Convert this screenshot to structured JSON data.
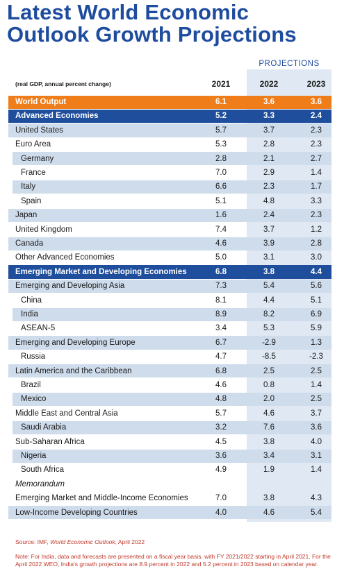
{
  "title": "Latest World Economic Outlook Growth Projections",
  "projections_label": "PROJECTIONS",
  "table": {
    "header": [
      "(real GDP, annual percent change)",
      "2021",
      "2022",
      "2023"
    ],
    "rows": [
      [
        "World Output",
        "6.1",
        "3.6",
        "3.6"
      ],
      [
        "Advanced Economies",
        "5.2",
        "3.3",
        "2.4"
      ],
      [
        "United States",
        "5.7",
        "3.7",
        "2.3"
      ],
      [
        "Euro Area",
        "5.3",
        "2.8",
        "2.3"
      ],
      [
        "Germany",
        "2.8",
        "2.1",
        "2.7"
      ],
      [
        "France",
        "7.0",
        "2.9",
        "1.4"
      ],
      [
        "Italy",
        "6.6",
        "2.3",
        "1.7"
      ],
      [
        "Spain",
        "5.1",
        "4.8",
        "3.3"
      ],
      [
        "Japan",
        "1.6",
        "2.4",
        "2.3"
      ],
      [
        "United Kingdom",
        "7.4",
        "3.7",
        "1.2"
      ],
      [
        "Canada",
        "4.6",
        "3.9",
        "2.8"
      ],
      [
        "Other Advanced Economies",
        "5.0",
        "3.1",
        "3.0"
      ],
      [
        "Emerging Market and Developing Economies",
        "6.8",
        "3.8",
        "4.4"
      ],
      [
        "Emerging and Developing Asia",
        "7.3",
        "5.4",
        "5.6"
      ],
      [
        "China",
        "8.1",
        "4.4",
        "5.1"
      ],
      [
        "India",
        "8.9",
        "8.2",
        "6.9"
      ],
      [
        "ASEAN-5",
        "3.4",
        "5.3",
        "5.9"
      ],
      [
        "Emerging and Developing Europe",
        "6.7",
        "-2.9",
        "1.3"
      ],
      [
        "Russia",
        "4.7",
        "-8.5",
        "-2.3"
      ],
      [
        "Latin America and the Caribbean",
        "6.8",
        "2.5",
        "2.5"
      ],
      [
        "Brazil",
        "4.6",
        "0.8",
        "1.4"
      ],
      [
        "Mexico",
        "4.8",
        "2.0",
        "2.5"
      ],
      [
        "Middle East and Central Asia",
        "5.7",
        "4.6",
        "3.7"
      ],
      [
        "Saudi Arabia",
        "3.2",
        "7.6",
        "3.6"
      ],
      [
        "Sub-Saharan Africa",
        "4.5",
        "3.8",
        "4.0"
      ],
      [
        "Nigeria",
        "3.6",
        "3.4",
        "3.1"
      ],
      [
        "South Africa",
        "4.9",
        "1.9",
        "1.4"
      ],
      [
        "Memorandum"
      ],
      [
        "Emerging Market and Middle-Income Economies",
        "7.0",
        "3.8",
        "4.3"
      ],
      [
        "Low-Income Developing Countries",
        "4.0",
        "4.6",
        "5.4"
      ]
    ]
  },
  "source": {
    "prefix": "Source: IMF, ",
    "italic": "World Economic Outlook",
    "suffix": ", April 2022"
  },
  "note": "Note: For India, data and forecasts are presented on a fiscal year basis, with FY 2021/2022 starting in April 2021. For the April 2022 WEO, India's growth projections are 8.9 percent in 2022 and 5.2 percent in 2023 based on calendar year."
}
